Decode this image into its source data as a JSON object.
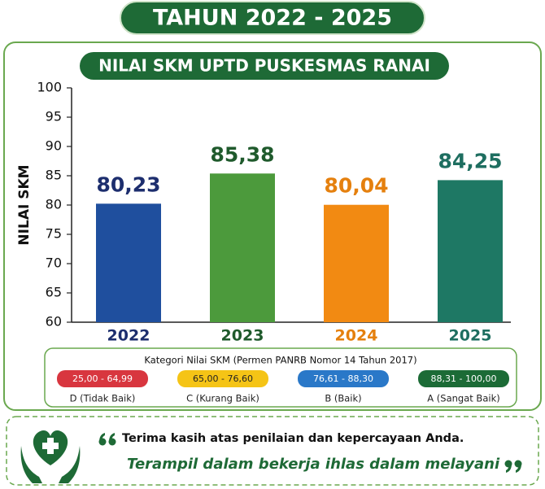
{
  "header": {
    "title": "TAHUN 2022 - 2025"
  },
  "chart_data": {
    "type": "bar",
    "title": "NILAI SKM UPTD PUSKESMAS RANAI",
    "y_label": "NILAI SKM",
    "categories": [
      "2022",
      "2023",
      "2024",
      "2025"
    ],
    "values": [
      80.23,
      85.38,
      80.04,
      84.25
    ],
    "value_labels": [
      "80,23",
      "85,38",
      "80,04",
      "84,25"
    ],
    "colors": [
      "#1f4f9e",
      "#4c9a3c",
      "#f28a12",
      "#1e7864"
    ],
    "label_colors": [
      "#1d2e6e",
      "#1f5a2c",
      "#e5800e",
      "#1e6e60"
    ],
    "ylim": [
      60,
      100
    ],
    "yticks": [
      60,
      65,
      70,
      75,
      80,
      85,
      90,
      95,
      100
    ],
    "grid": false
  },
  "category_legend": {
    "title": "Kategori Nilai SKM (Permen PANRB Nomor 14 Tahun 2017)",
    "items": [
      {
        "range": "25,00 - 64,99",
        "label": "D (Tidak Baik)",
        "color": "#d8363f"
      },
      {
        "range": "65,00 - 76,60",
        "label": "C (Kurang Baik)",
        "color": "#f5c416"
      },
      {
        "range": "76,61 - 88,30",
        "label": "B (Baik)",
        "color": "#2a78c8"
      },
      {
        "range": "88,31 - 100,00",
        "label": "A (Sangat Baik)",
        "color": "#1c6b36"
      }
    ]
  },
  "footer": {
    "line1": "Terima kasih atas penilaian dan kepercayaan Anda.",
    "line2": "Terampil dalam bekerja ihlas dalam melayani"
  }
}
